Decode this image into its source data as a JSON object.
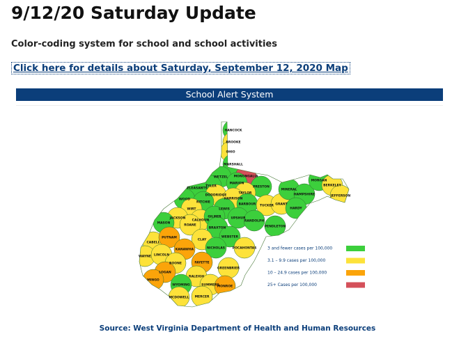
{
  "header": {
    "title": "9/12/20 Saturday Update",
    "subtitle": "Color-coding system for school and school activities",
    "link": "Click here for details about Saturday, September 12, 2020 Map"
  },
  "banner": "School Alert System",
  "map": {
    "legend": [
      {
        "label": "3 and fewer cases per 100,000",
        "color": "#3ccf3c"
      },
      {
        "label": "3.1 – 9.9 cases per 100,000",
        "color": "#fde23a"
      },
      {
        "label": "10 – 24.9 cases per 100,000",
        "color": "#fba40a"
      },
      {
        "label": "25+ Cases per 100,000",
        "color": "#d4505a"
      }
    ],
    "counties": [
      {
        "name": "HANCOCK",
        "level": 0
      },
      {
        "name": "BROOKE",
        "level": 1
      },
      {
        "name": "OHIO",
        "level": 1
      },
      {
        "name": "MARSHALL",
        "level": 0
      },
      {
        "name": "MONONGALIA",
        "level": 3
      },
      {
        "name": "WETZEL",
        "level": 0
      },
      {
        "name": "MARION",
        "level": 0
      },
      {
        "name": "PRESTON",
        "level": 0
      },
      {
        "name": "TYLER",
        "level": 0
      },
      {
        "name": "PLEASANTS",
        "level": 0
      },
      {
        "name": "TAYLOR",
        "level": 1
      },
      {
        "name": "DODDRIDGE",
        "level": 1
      },
      {
        "name": "HARRISON",
        "level": 1
      },
      {
        "name": "BARBOUR",
        "level": 0
      },
      {
        "name": "TUCKER",
        "level": 1
      },
      {
        "name": "GRANT",
        "level": 1
      },
      {
        "name": "MINERAL",
        "level": 0
      },
      {
        "name": "HAMPSHIRE",
        "level": 0
      },
      {
        "name": "MORGAN",
        "level": 0
      },
      {
        "name": "BERKELEY",
        "level": 1
      },
      {
        "name": "JEFFERSON",
        "level": 1
      },
      {
        "name": "HARDY",
        "level": 0
      },
      {
        "name": "WOOD",
        "level": 0
      },
      {
        "name": "RITCHIE",
        "level": 0
      },
      {
        "name": "WIRT",
        "level": 1
      },
      {
        "name": "LEWIS",
        "level": 0
      },
      {
        "name": "UPSHUR",
        "level": 0
      },
      {
        "name": "RANDOLPH",
        "level": 0
      },
      {
        "name": "PENDLETON",
        "level": 0
      },
      {
        "name": "JACKSON",
        "level": 1
      },
      {
        "name": "CALHOUN",
        "level": 1
      },
      {
        "name": "GILMER",
        "level": 0
      },
      {
        "name": "ROANE",
        "level": 1
      },
      {
        "name": "BRAXTON",
        "level": 0
      },
      {
        "name": "MASON",
        "level": 0
      },
      {
        "name": "WEBSTER",
        "level": 0
      },
      {
        "name": "CLAY",
        "level": 1
      },
      {
        "name": "CABELL",
        "level": 1
      },
      {
        "name": "PUTNAM",
        "level": 2
      },
      {
        "name": "KANAWHA",
        "level": 2
      },
      {
        "name": "NICHOLAS",
        "level": 0
      },
      {
        "name": "POCAHONTAS",
        "level": 1
      },
      {
        "name": "WAYNE",
        "level": 1
      },
      {
        "name": "LINCOLN",
        "level": 1
      },
      {
        "name": "BOONE",
        "level": 1
      },
      {
        "name": "FAYETTE",
        "level": 2
      },
      {
        "name": "GREENBRIER",
        "level": 1
      },
      {
        "name": "LOGAN",
        "level": 2
      },
      {
        "name": "RALEIGH",
        "level": 1
      },
      {
        "name": "MINGO",
        "level": 2
      },
      {
        "name": "WYOMING",
        "level": 0
      },
      {
        "name": "SUMMERS",
        "level": 1
      },
      {
        "name": "MONROE",
        "level": 2
      },
      {
        "name": "MCDOWELL",
        "level": 1
      },
      {
        "name": "MERCER",
        "level": 1
      }
    ]
  },
  "source": "Source: West Virginia Department of Health and Human Resources"
}
